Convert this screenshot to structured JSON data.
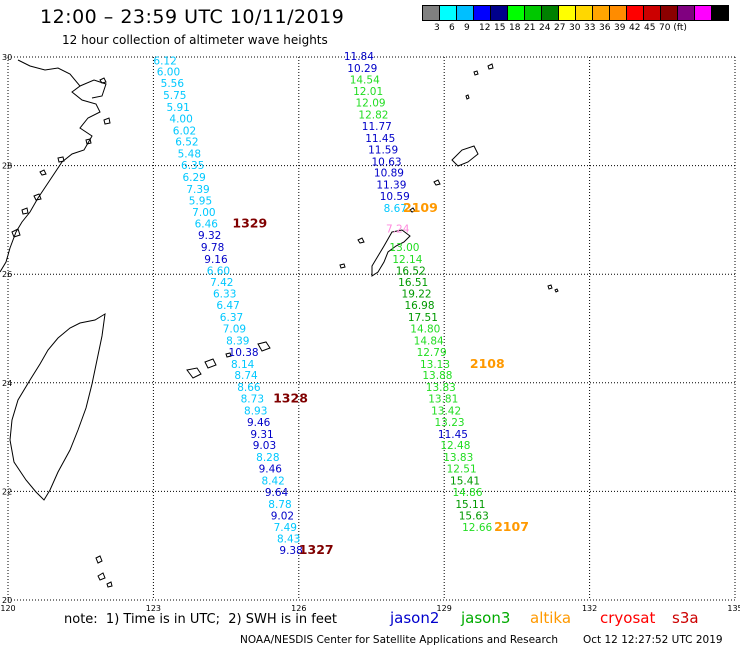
{
  "header": {
    "title": "12:00 – 23:59 UTC 10/11/2019",
    "subtitle": "12 hour collection of altimeter wave heights"
  },
  "legend": {
    "colors": [
      "#808080",
      "#00ffff",
      "#00bfff",
      "#0000ff",
      "#00008b",
      "#00ff00",
      "#00c800",
      "#008000",
      "#ffff00",
      "#ffd700",
      "#ffa500",
      "#ff8c00",
      "#ff0000",
      "#cc0000",
      "#8b0000",
      "#800080",
      "#ff00ff",
      "#000000"
    ],
    "labels": [
      "3",
      "6",
      "9",
      "12",
      "15",
      "18",
      "21",
      "24",
      "27",
      "30",
      "33",
      "36",
      "39",
      "42",
      "45",
      "70 (ft)"
    ]
  },
  "axes": {
    "x_ticks": [
      "120",
      "123",
      "126",
      "129",
      "132",
      "135"
    ],
    "y_ticks": [
      "30",
      "28",
      "26",
      "24",
      "22",
      "20"
    ]
  },
  "colors": {
    "cyan": "#00c8ff",
    "blue": "#0000c8",
    "green": "#22dd22",
    "darkgreen": "#009900",
    "orange": "#ff9900",
    "maroon": "#800000",
    "pink": "#ff88dd"
  },
  "wave_points": [
    {
      "v": "6.12",
      "lon": 123.0,
      "lat": 29.94,
      "c": "cyan"
    },
    {
      "v": "6.00",
      "lon": 123.07,
      "lat": 29.73,
      "c": "cyan"
    },
    {
      "v": "5.56",
      "lon": 123.15,
      "lat": 29.52,
      "c": "cyan"
    },
    {
      "v": "5.75",
      "lon": 123.2,
      "lat": 29.3,
      "c": "cyan"
    },
    {
      "v": "5.91",
      "lon": 123.27,
      "lat": 29.08,
      "c": "cyan"
    },
    {
      "v": "4.00",
      "lon": 123.33,
      "lat": 28.87,
      "c": "cyan"
    },
    {
      "v": "6.02",
      "lon": 123.4,
      "lat": 28.65,
      "c": "cyan"
    },
    {
      "v": "6.52",
      "lon": 123.45,
      "lat": 28.44,
      "c": "cyan"
    },
    {
      "v": "5.48",
      "lon": 123.5,
      "lat": 28.22,
      "c": "cyan"
    },
    {
      "v": "6.35",
      "lon": 123.57,
      "lat": 28.01,
      "c": "cyan"
    },
    {
      "v": "6.29",
      "lon": 123.6,
      "lat": 27.79,
      "c": "cyan"
    },
    {
      "v": "7.39",
      "lon": 123.68,
      "lat": 27.57,
      "c": "cyan"
    },
    {
      "v": "5.95",
      "lon": 123.73,
      "lat": 27.36,
      "c": "cyan"
    },
    {
      "v": "7.00",
      "lon": 123.8,
      "lat": 27.15,
      "c": "cyan"
    },
    {
      "v": "6.46",
      "lon": 123.85,
      "lat": 26.93,
      "c": "cyan"
    },
    {
      "v": "9.32",
      "lon": 123.92,
      "lat": 26.72,
      "c": "blue"
    },
    {
      "v": "9.78",
      "lon": 123.98,
      "lat": 26.5,
      "c": "blue"
    },
    {
      "v": "9.16",
      "lon": 124.05,
      "lat": 26.28,
      "c": "blue"
    },
    {
      "v": "6.60",
      "lon": 124.1,
      "lat": 26.07,
      "c": "cyan"
    },
    {
      "v": "7.42",
      "lon": 124.17,
      "lat": 25.86,
      "c": "cyan"
    },
    {
      "v": "6.33",
      "lon": 124.23,
      "lat": 25.64,
      "c": "cyan"
    },
    {
      "v": "6.47",
      "lon": 124.3,
      "lat": 25.43,
      "c": "cyan"
    },
    {
      "v": "6.37",
      "lon": 124.37,
      "lat": 25.21,
      "c": "cyan"
    },
    {
      "v": "7.09",
      "lon": 124.43,
      "lat": 25.0,
      "c": "cyan"
    },
    {
      "v": "8.39",
      "lon": 124.5,
      "lat": 24.78,
      "c": "cyan"
    },
    {
      "v": "10.38",
      "lon": 124.55,
      "lat": 24.57,
      "c": "blue"
    },
    {
      "v": "8.14",
      "lon": 124.6,
      "lat": 24.35,
      "c": "cyan"
    },
    {
      "v": "8.74",
      "lon": 124.67,
      "lat": 24.14,
      "c": "cyan"
    },
    {
      "v": "8.66",
      "lon": 124.73,
      "lat": 23.92,
      "c": "cyan"
    },
    {
      "v": "8.73",
      "lon": 124.8,
      "lat": 23.71,
      "c": "cyan"
    },
    {
      "v": "8.93",
      "lon": 124.87,
      "lat": 23.49,
      "c": "cyan"
    },
    {
      "v": "9.46",
      "lon": 124.93,
      "lat": 23.28,
      "c": "blue"
    },
    {
      "v": "9.31",
      "lon": 125.0,
      "lat": 23.06,
      "c": "blue"
    },
    {
      "v": "9.03",
      "lon": 125.05,
      "lat": 22.85,
      "c": "blue"
    },
    {
      "v": "8.28",
      "lon": 125.12,
      "lat": 22.63,
      "c": "cyan"
    },
    {
      "v": "9.46",
      "lon": 125.17,
      "lat": 22.42,
      "c": "blue"
    },
    {
      "v": "8.42",
      "lon": 125.23,
      "lat": 22.2,
      "c": "cyan"
    },
    {
      "v": "9.64",
      "lon": 125.3,
      "lat": 21.99,
      "c": "blue"
    },
    {
      "v": "8.78",
      "lon": 125.37,
      "lat": 21.77,
      "c": "cyan"
    },
    {
      "v": "9.02",
      "lon": 125.42,
      "lat": 21.56,
      "c": "blue"
    },
    {
      "v": "7.49",
      "lon": 125.48,
      "lat": 21.34,
      "c": "cyan"
    },
    {
      "v": "8.43",
      "lon": 125.55,
      "lat": 21.13,
      "c": "cyan"
    },
    {
      "v": "9.38",
      "lon": 125.6,
      "lat": 20.92,
      "c": "blue"
    },
    {
      "v": "11.84",
      "lon": 126.93,
      "lat": 30.02,
      "c": "blue"
    },
    {
      "v": "10.29",
      "lon": 127.0,
      "lat": 29.8,
      "c": "blue"
    },
    {
      "v": "14.54",
      "lon": 127.05,
      "lat": 29.59,
      "c": "green"
    },
    {
      "v": "12.01",
      "lon": 127.12,
      "lat": 29.37,
      "c": "green"
    },
    {
      "v": "12.09",
      "lon": 127.17,
      "lat": 29.16,
      "c": "green"
    },
    {
      "v": "12.82",
      "lon": 127.23,
      "lat": 28.94,
      "c": "green"
    },
    {
      "v": "11.77",
      "lon": 127.3,
      "lat": 28.73,
      "c": "blue"
    },
    {
      "v": "11.45",
      "lon": 127.37,
      "lat": 28.51,
      "c": "blue"
    },
    {
      "v": "11.59",
      "lon": 127.43,
      "lat": 28.3,
      "c": "blue"
    },
    {
      "v": "10.63",
      "lon": 127.5,
      "lat": 28.08,
      "c": "blue"
    },
    {
      "v": "10.89",
      "lon": 127.55,
      "lat": 27.87,
      "c": "blue"
    },
    {
      "v": "11.39",
      "lon": 127.6,
      "lat": 27.65,
      "c": "blue"
    },
    {
      "v": "10.59",
      "lon": 127.67,
      "lat": 27.44,
      "c": "blue"
    },
    {
      "v": "8.67",
      "lon": 127.75,
      "lat": 27.22,
      "c": "cyan"
    },
    {
      "v": "7.24",
      "lon": 127.8,
      "lat": 26.84,
      "c": "pink"
    },
    {
      "v": "13.00",
      "lon": 127.87,
      "lat": 26.5,
      "c": "green"
    },
    {
      "v": "12.14",
      "lon": 127.93,
      "lat": 26.28,
      "c": "green"
    },
    {
      "v": "16.52",
      "lon": 128.0,
      "lat": 26.07,
      "c": "darkgreen"
    },
    {
      "v": "16.51",
      "lon": 128.05,
      "lat": 25.86,
      "c": "darkgreen"
    },
    {
      "v": "19.22",
      "lon": 128.12,
      "lat": 25.64,
      "c": "darkgreen"
    },
    {
      "v": "16.98",
      "lon": 128.18,
      "lat": 25.43,
      "c": "darkgreen"
    },
    {
      "v": "17.51",
      "lon": 128.25,
      "lat": 25.21,
      "c": "darkgreen"
    },
    {
      "v": "14.80",
      "lon": 128.3,
      "lat": 25.0,
      "c": "green"
    },
    {
      "v": "14.84",
      "lon": 128.37,
      "lat": 24.78,
      "c": "green"
    },
    {
      "v": "12.79",
      "lon": 128.43,
      "lat": 24.57,
      "c": "green"
    },
    {
      "v": "13.13",
      "lon": 128.5,
      "lat": 24.35,
      "c": "green"
    },
    {
      "v": "13.88",
      "lon": 128.55,
      "lat": 24.14,
      "c": "green"
    },
    {
      "v": "13.83",
      "lon": 128.62,
      "lat": 23.92,
      "c": "green"
    },
    {
      "v": "13.81",
      "lon": 128.67,
      "lat": 23.71,
      "c": "green"
    },
    {
      "v": "13.42",
      "lon": 128.73,
      "lat": 23.49,
      "c": "green"
    },
    {
      "v": "13.23",
      "lon": 128.8,
      "lat": 23.28,
      "c": "green"
    },
    {
      "v": "11.45",
      "lon": 128.87,
      "lat": 23.06,
      "c": "blue"
    },
    {
      "v": "12.48",
      "lon": 128.92,
      "lat": 22.85,
      "c": "green"
    },
    {
      "v": "13.83",
      "lon": 128.98,
      "lat": 22.63,
      "c": "green"
    },
    {
      "v": "12.51",
      "lon": 129.05,
      "lat": 22.42,
      "c": "green"
    },
    {
      "v": "15.41",
      "lon": 129.12,
      "lat": 22.2,
      "c": "darkgreen"
    },
    {
      "v": "14.86",
      "lon": 129.17,
      "lat": 21.99,
      "c": "green"
    },
    {
      "v": "15.11",
      "lon": 129.23,
      "lat": 21.77,
      "c": "darkgreen"
    },
    {
      "v": "15.63",
      "lon": 129.3,
      "lat": 21.56,
      "c": "darkgreen"
    },
    {
      "v": "12.66",
      "lon": 129.37,
      "lat": 21.34,
      "c": "green"
    }
  ],
  "pass_labels": [
    {
      "t": "1329",
      "lon": 124.63,
      "lat": 26.93,
      "c": "maroon"
    },
    {
      "t": "2109",
      "lon": 128.15,
      "lat": 27.22,
      "c": "orange"
    },
    {
      "t": "2108",
      "lon": 129.53,
      "lat": 24.35,
      "c": "orange"
    },
    {
      "t": "1328",
      "lon": 125.47,
      "lat": 23.71,
      "c": "maroon"
    },
    {
      "t": "1327",
      "lon": 126.0,
      "lat": 20.92,
      "c": "maroon"
    },
    {
      "t": "2107",
      "lon": 130.03,
      "lat": 21.34,
      "c": "orange"
    }
  ],
  "footer": {
    "note": "note:  1) Time is in UTC;  2) SWH is in feet",
    "satellites": [
      {
        "name": "jason2",
        "color": "#0000cc"
      },
      {
        "name": "jason3",
        "color": "#00aa00"
      },
      {
        "name": "altika",
        "color": "#ff9900"
      },
      {
        "name": "cryosat",
        "color": "#ff0000"
      },
      {
        "name": "s3a",
        "color": "#cc0000"
      }
    ],
    "credit": "NOAA/NESDIS Center for Satellite Applications and Research",
    "date": "Oct 12 12:27:52 UTC 2019"
  }
}
